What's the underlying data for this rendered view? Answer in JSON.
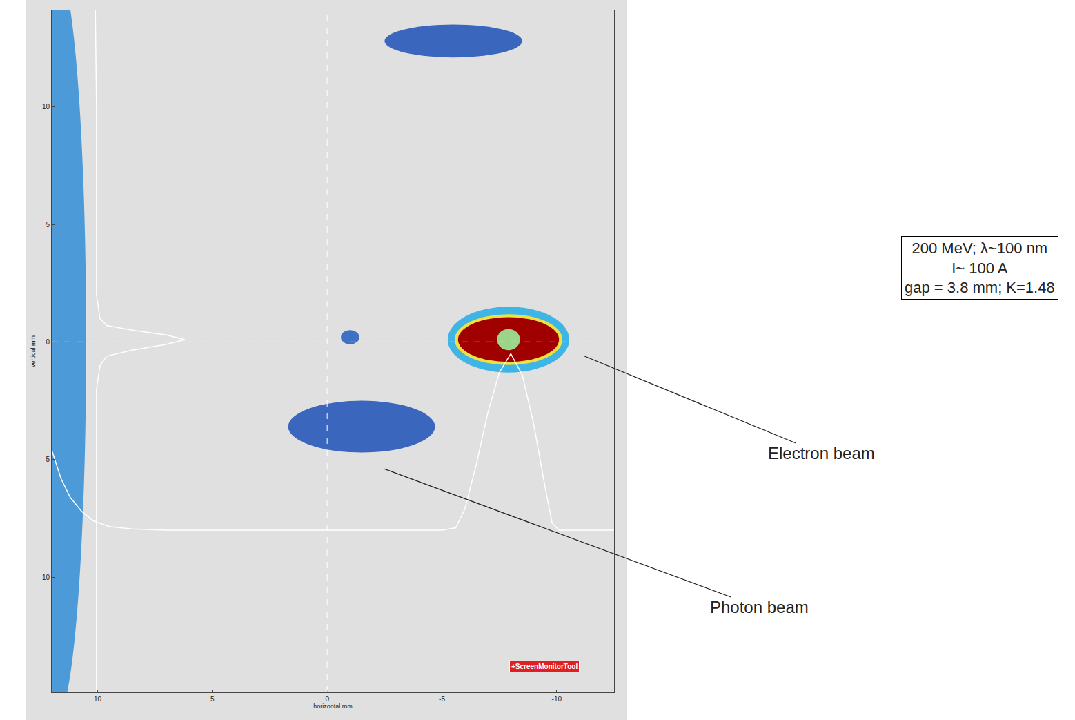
{
  "chart_data": {
    "type": "image",
    "xlabel": "horizontal mm",
    "ylabel": "vertical mm",
    "xlim": [
      12,
      -12.5
    ],
    "ylim": [
      -14.9,
      14.1
    ],
    "xticks": [
      10,
      5,
      0,
      -5,
      -10
    ],
    "yticks": [
      -10,
      -5,
      0,
      5,
      10
    ],
    "color": "#2b54ae",
    "crosshair": {
      "x": 0,
      "y": 0
    },
    "spots": [
      {
        "x": 11.8,
        "y": 0,
        "rx": 1.3,
        "ry": 16,
        "color": "#4d9ad8"
      },
      {
        "x": -1.5,
        "y": -3.6,
        "rx": 3.2,
        "ry": 1.1,
        "color": "#3a67bd"
      },
      {
        "x": -5.5,
        "y": 12.8,
        "rx": 3.0,
        "ry": 0.7,
        "color": "#3a67bd"
      },
      {
        "x": -1.0,
        "y": 0.2,
        "rx": 0.4,
        "ry": 0.3,
        "color": "#3f70c4"
      },
      {
        "x": -7.9,
        "y": 0.1,
        "rx": 2.65,
        "ry": 1.4,
        "color": "#3fb5e6"
      },
      {
        "x": -7.9,
        "y": 0.1,
        "rx": 2.35,
        "ry": 1.08,
        "color": "#f0e040"
      },
      {
        "x": -7.9,
        "y": 0.1,
        "rx": 2.2,
        "ry": 0.95,
        "color": "#a00000"
      },
      {
        "x": -7.9,
        "y": 0.1,
        "rx": 0.5,
        "ry": 0.45,
        "color": "#9cd48a"
      }
    ],
    "series": [
      {
        "color": "#ffffff",
        "x": [
          12,
          11.6,
          11.2,
          10.7,
          10.2,
          9.5,
          8.5,
          7,
          5,
          0,
          -5,
          -5.6,
          -6,
          -6.5,
          -7,
          -7.5,
          -8,
          -8.5,
          -9,
          -9.5,
          -9.8,
          -10.1,
          -11,
          -12.5
        ],
        "values": [
          -4.6,
          -5.8,
          -6.6,
          -7.2,
          -7.6,
          -7.85,
          -7.95,
          -8,
          -8,
          -8,
          -8,
          -7.9,
          -7.1,
          -5.2,
          -3,
          -1.3,
          -0.5,
          -1.4,
          -3.5,
          -6.2,
          -7.7,
          -8,
          -8,
          -8
        ]
      },
      {
        "color": "#ffffff",
        "x": [
          10.1,
          10.05,
          10.05,
          9.9,
          9.6,
          8.5,
          7,
          6.2,
          7,
          8.5,
          9.6,
          9.9,
          10.05,
          10.05
        ],
        "values": [
          14.1,
          10,
          2,
          1,
          0.7,
          0.5,
          0.3,
          0.1,
          -0.1,
          -0.35,
          -0.6,
          -1,
          -2,
          -14.9
        ]
      }
    ],
    "annotations": [
      {
        "text": "Electron beam",
        "x": -11.2,
        "y": -0.6
      },
      {
        "text": "Photon beam",
        "x": -2.5,
        "y": -5.4
      }
    ],
    "info_box": [
      "200 MeV; λ~100 nm",
      "I~ 100 A",
      "gap = 3.8 mm; K=1.48"
    ],
    "badge": "+ScreenMonitorTool"
  }
}
